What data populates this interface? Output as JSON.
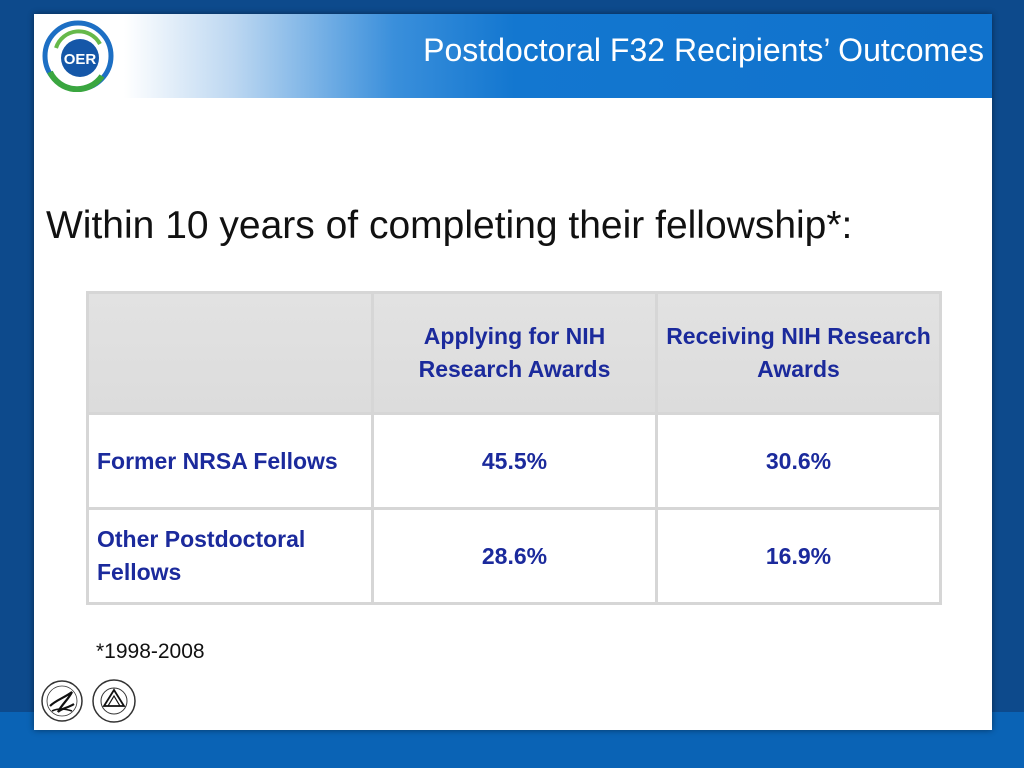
{
  "colors": {
    "background": "#0d4a8c",
    "header_blue": "#1072cc",
    "table_text": "#1b2a9c"
  },
  "header": {
    "logo_text": "OER",
    "title": "Postdoctoral F32 Recipients’ Outcomes"
  },
  "subtitle": "Within 10 years of completing their fellowship*:",
  "table": {
    "columns": [
      "",
      "Applying for NIH Research Awards",
      "Receiving NIH Research Awards"
    ],
    "rows": [
      {
        "label": "Former NRSA Fellows",
        "applying": "45.5%",
        "receiving": "30.6%"
      },
      {
        "label": "Other Postdoctoral Fellows",
        "applying": "28.6%",
        "receiving": "16.9%"
      }
    ]
  },
  "footnote": "*1998-2008",
  "footer_logos": [
    "hhs-eagle-icon",
    "nih-seal-icon"
  ]
}
